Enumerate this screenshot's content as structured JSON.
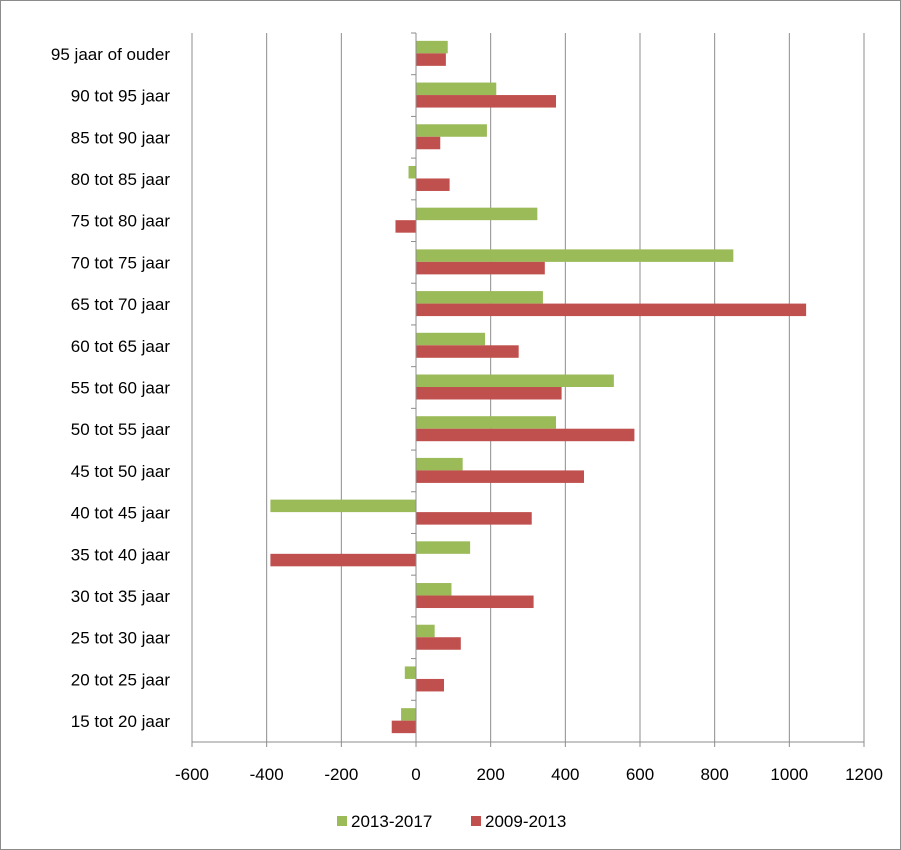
{
  "chart_data": {
    "type": "bar",
    "orientation": "horizontal",
    "categories": [
      "95 jaar of ouder",
      "90 tot 95 jaar",
      "85 tot 90 jaar",
      "80 tot 85 jaar",
      "75 tot 80 jaar",
      "70 tot 75 jaar",
      "65 tot 70 jaar",
      "60 tot 65 jaar",
      "55 tot 60 jaar",
      "50 tot 55 jaar",
      "45 tot 50 jaar",
      "40 tot 45 jaar",
      "35 tot 40 jaar",
      "30 tot 35 jaar",
      "25 tot 30 jaar",
      "20 tot 25 jaar",
      "15 tot 20 jaar"
    ],
    "series": [
      {
        "name": "2013-2017",
        "color": "#9bbb59",
        "values": [
          85,
          215,
          190,
          -20,
          325,
          850,
          340,
          185,
          530,
          375,
          125,
          -390,
          145,
          95,
          50,
          -30,
          -40
        ]
      },
      {
        "name": "2009-2013",
        "color": "#c0504d",
        "values": [
          80,
          375,
          65,
          90,
          -55,
          345,
          1045,
          275,
          390,
          585,
          450,
          310,
          -390,
          315,
          120,
          75,
          -65
        ]
      }
    ],
    "xlim": [
      -600,
      1200
    ],
    "xticks": [
      -600,
      -400,
      -200,
      0,
      200,
      400,
      600,
      800,
      1000,
      1200
    ],
    "grid": "vertical",
    "legend_position": "bottom",
    "title": "",
    "xlabel": "",
    "ylabel": ""
  }
}
